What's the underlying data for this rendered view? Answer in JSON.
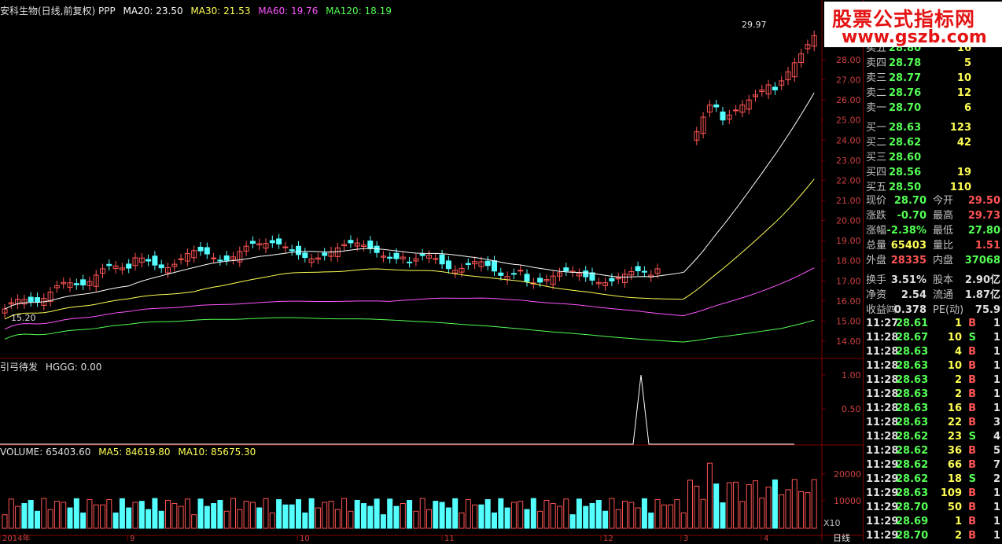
{
  "main_legend": {
    "title": "安科生物(日线,前复权) PPP",
    "ma20": "MA20: 23.50",
    "ma30": "MA30: 21.53",
    "ma60": "MA60: 19.76",
    "ma120": "MA120: 18.19"
  },
  "indicator_legend": {
    "name": "引弓待发",
    "value": "HGGG: 0.00"
  },
  "volume_legend": {
    "volume": "VOLUME: 65403.60",
    "ma5": "MA5: 84619.80",
    "ma10": "MA10: 85675.30"
  },
  "annotations": {
    "high_label": "29.97",
    "low_label": "15.20",
    "x10_label": "X10",
    "period_label": "日线"
  },
  "price_axis": [
    "28.00",
    "27.00",
    "26.00",
    "25.00",
    "24.00",
    "23.00",
    "22.00",
    "21.00",
    "20.00",
    "19.00",
    "18.00",
    "17.00",
    "16.00",
    "15.00",
    "14.00"
  ],
  "indicator_axis": [
    "1.00",
    "0.50"
  ],
  "volume_axis": [
    "20000",
    "10000"
  ],
  "date_axis": [
    "2014年",
    "9",
    "10",
    "11",
    "12",
    "3",
    "4"
  ],
  "order_book": {
    "asks": [
      {
        "label": "卖五",
        "price": "28.80",
        "vol": "16"
      },
      {
        "label": "卖四",
        "price": "28.78",
        "vol": "5"
      },
      {
        "label": "卖三",
        "price": "28.77",
        "vol": "10"
      },
      {
        "label": "卖二",
        "price": "28.76",
        "vol": "12"
      },
      {
        "label": "卖一",
        "price": "28.70",
        "vol": "6"
      }
    ],
    "bids": [
      {
        "label": "买一",
        "price": "28.63",
        "vol": "123"
      },
      {
        "label": "买二",
        "price": "28.62",
        "vol": "42"
      },
      {
        "label": "买三",
        "price": "28.60",
        "vol": ""
      },
      {
        "label": "买四",
        "price": "28.56",
        "vol": "19"
      },
      {
        "label": "买五",
        "price": "28.50",
        "vol": "110"
      }
    ]
  },
  "quote": {
    "current_label": "现价",
    "current": "28.70",
    "open_label": "今开",
    "open": "29.50",
    "change_label": "涨跌",
    "change": "-0.70",
    "high_label": "最高",
    "high": "29.73",
    "pct_label": "涨幅",
    "pct": "-2.38%",
    "low_label": "最低",
    "low": "27.80",
    "total_label": "总量",
    "total": "65403",
    "ratio_label": "量比",
    "ratio": "1.51",
    "outer_label": "外盘",
    "outer": "28335",
    "inner_label": "内盘",
    "inner": "37068",
    "turnover_label": "换手",
    "turnover": "3.51%",
    "capital_label": "股本",
    "capital": "2.90亿",
    "nav_label": "净资",
    "nav": "2.54",
    "float_label": "流通",
    "float": "1.87亿",
    "eps_label": "收益㈣",
    "eps": "0.378",
    "pe_label": "PE(动)",
    "pe": "75.9"
  },
  "ticks": [
    {
      "time": "11:27",
      "price": "28.61",
      "vol": "1",
      "side": "B",
      "n": "1"
    },
    {
      "time": "11:28",
      "price": "28.67",
      "vol": "10",
      "side": "S",
      "n": "1"
    },
    {
      "time": "11:28",
      "price": "28.63",
      "vol": "4",
      "side": "B",
      "n": "1"
    },
    {
      "time": "11:28",
      "price": "28.63",
      "vol": "10",
      "side": "B",
      "n": "1"
    },
    {
      "time": "11:28",
      "price": "28.63",
      "vol": "2",
      "side": "B",
      "n": "1"
    },
    {
      "time": "11:28",
      "price": "28.63",
      "vol": "2",
      "side": "B",
      "n": "1"
    },
    {
      "time": "11:28",
      "price": "28.63",
      "vol": "16",
      "side": "B",
      "n": "1"
    },
    {
      "time": "11:28",
      "price": "28.63",
      "vol": "22",
      "side": "B",
      "n": "3"
    },
    {
      "time": "11:28",
      "price": "28.62",
      "vol": "23",
      "side": "S",
      "n": "4"
    },
    {
      "time": "11:28",
      "price": "28.62",
      "vol": "36",
      "side": "B",
      "n": "5"
    },
    {
      "time": "11:29",
      "price": "28.62",
      "vol": "66",
      "side": "B",
      "n": "7"
    },
    {
      "time": "11:29",
      "price": "28.62",
      "vol": "18",
      "side": "S",
      "n": "2"
    },
    {
      "time": "11:29",
      "price": "28.63",
      "vol": "109",
      "side": "B",
      "n": "1"
    },
    {
      "time": "11:29",
      "price": "28.70",
      "vol": "50",
      "side": "B",
      "n": "1"
    },
    {
      "time": "11:29",
      "price": "28.69",
      "vol": "1",
      "side": "B",
      "n": "1"
    },
    {
      "time": "11:29",
      "price": "28.70",
      "vol": "2",
      "side": "B",
      "n": "1"
    }
  ],
  "watermark": {
    "line1": "股票公式指标网",
    "line2": "www.gszb.com"
  },
  "colors": {
    "up": "#ff5454",
    "down": "#54ffff",
    "ma20": "#ffffff",
    "ma30": "#ffff54",
    "ma60": "#ff54ff",
    "ma120": "#54ff54",
    "grid": "#800000"
  }
}
